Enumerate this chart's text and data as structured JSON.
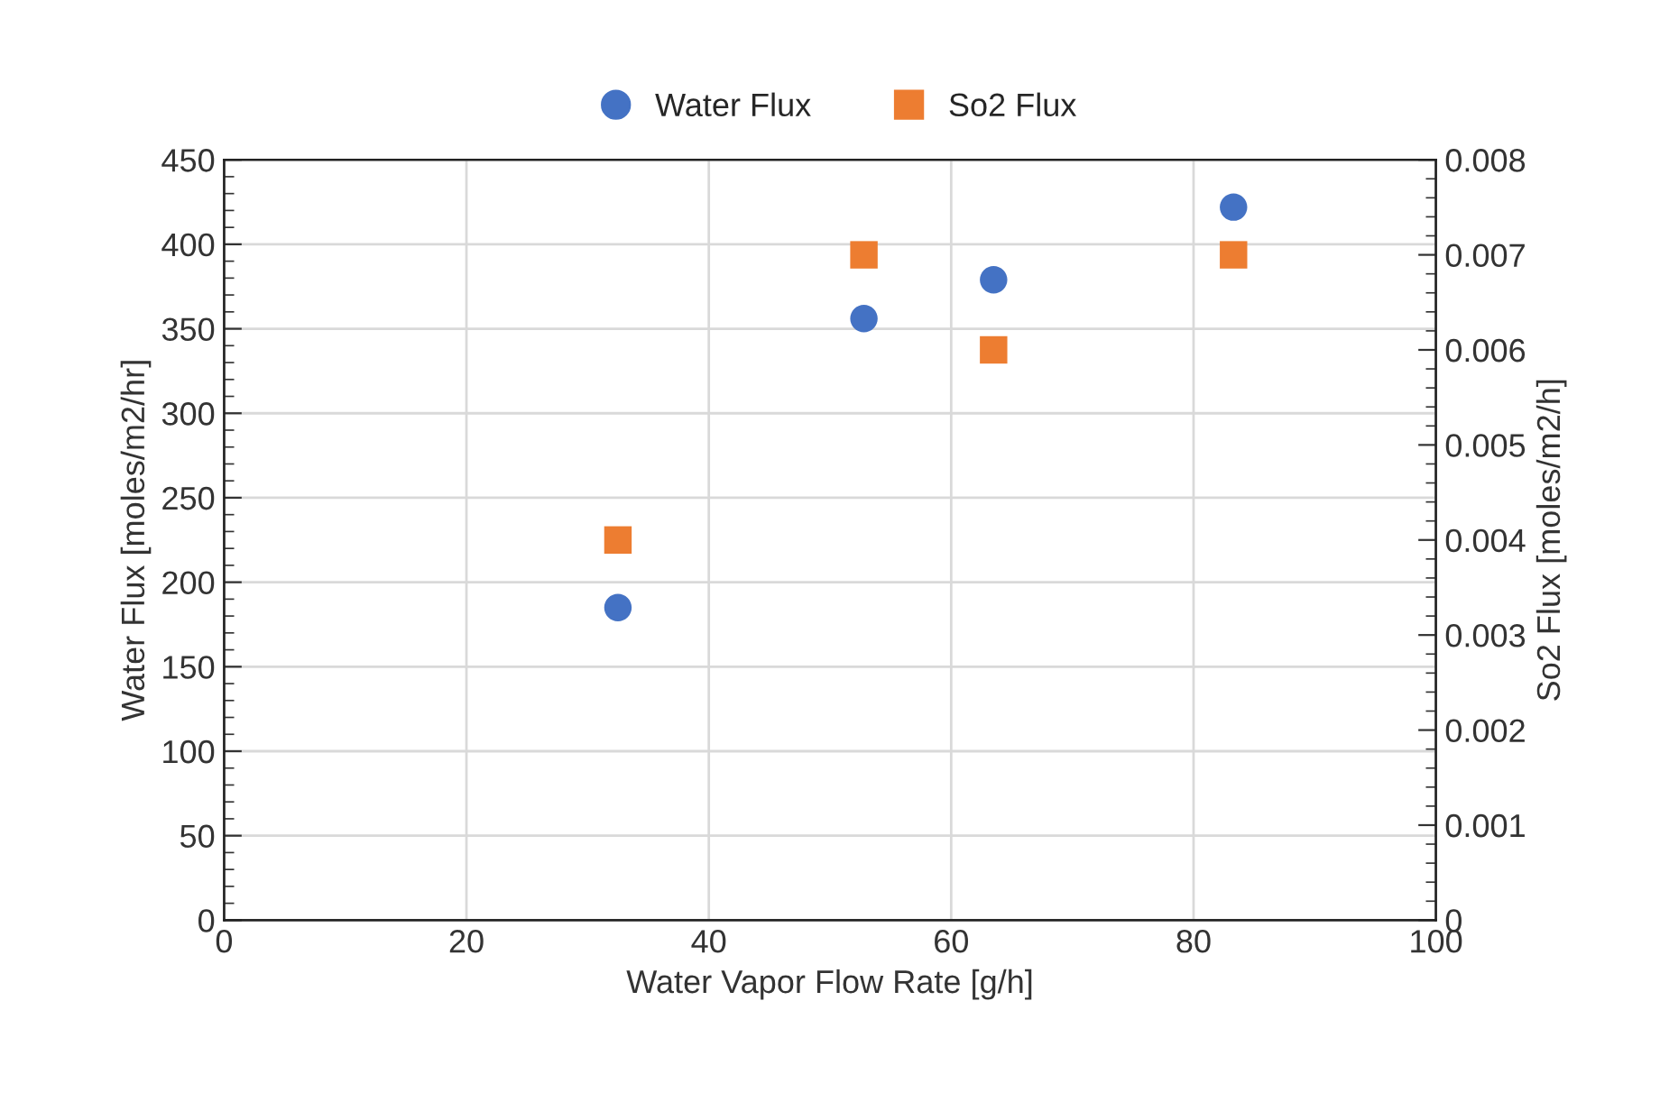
{
  "chart_data": {
    "type": "scatter",
    "xlabel": "Water Vapor Flow Rate [g/h]",
    "ylabel": "Water Flux [moles/m2/hr]",
    "y2label": "So2 Flux [moles/m2/h]",
    "x": [
      32.5,
      52.8,
      63.5,
      83.3
    ],
    "series": [
      {
        "name": "Water Flux",
        "color": "#4472c4",
        "marker": "circle",
        "values": [
          185,
          356,
          379,
          422
        ]
      },
      {
        "name": "So2 Flux",
        "color": "#ed7d31",
        "marker": "square",
        "axis": "y2",
        "values": [
          0.004,
          0.007,
          0.006,
          0.007
        ]
      }
    ],
    "xlim": [
      0,
      100
    ],
    "xticks": [
      0,
      20,
      40,
      60,
      80,
      100
    ],
    "ylim": [
      0,
      450
    ],
    "yticks": [
      0,
      50,
      100,
      150,
      200,
      250,
      300,
      350,
      400,
      450
    ],
    "y2lim": [
      0,
      0.008
    ],
    "y2ticks": [
      0,
      0.001,
      0.002,
      0.003,
      0.004,
      0.005,
      0.006,
      0.007,
      0.008
    ],
    "grid": true,
    "legend": "top"
  }
}
